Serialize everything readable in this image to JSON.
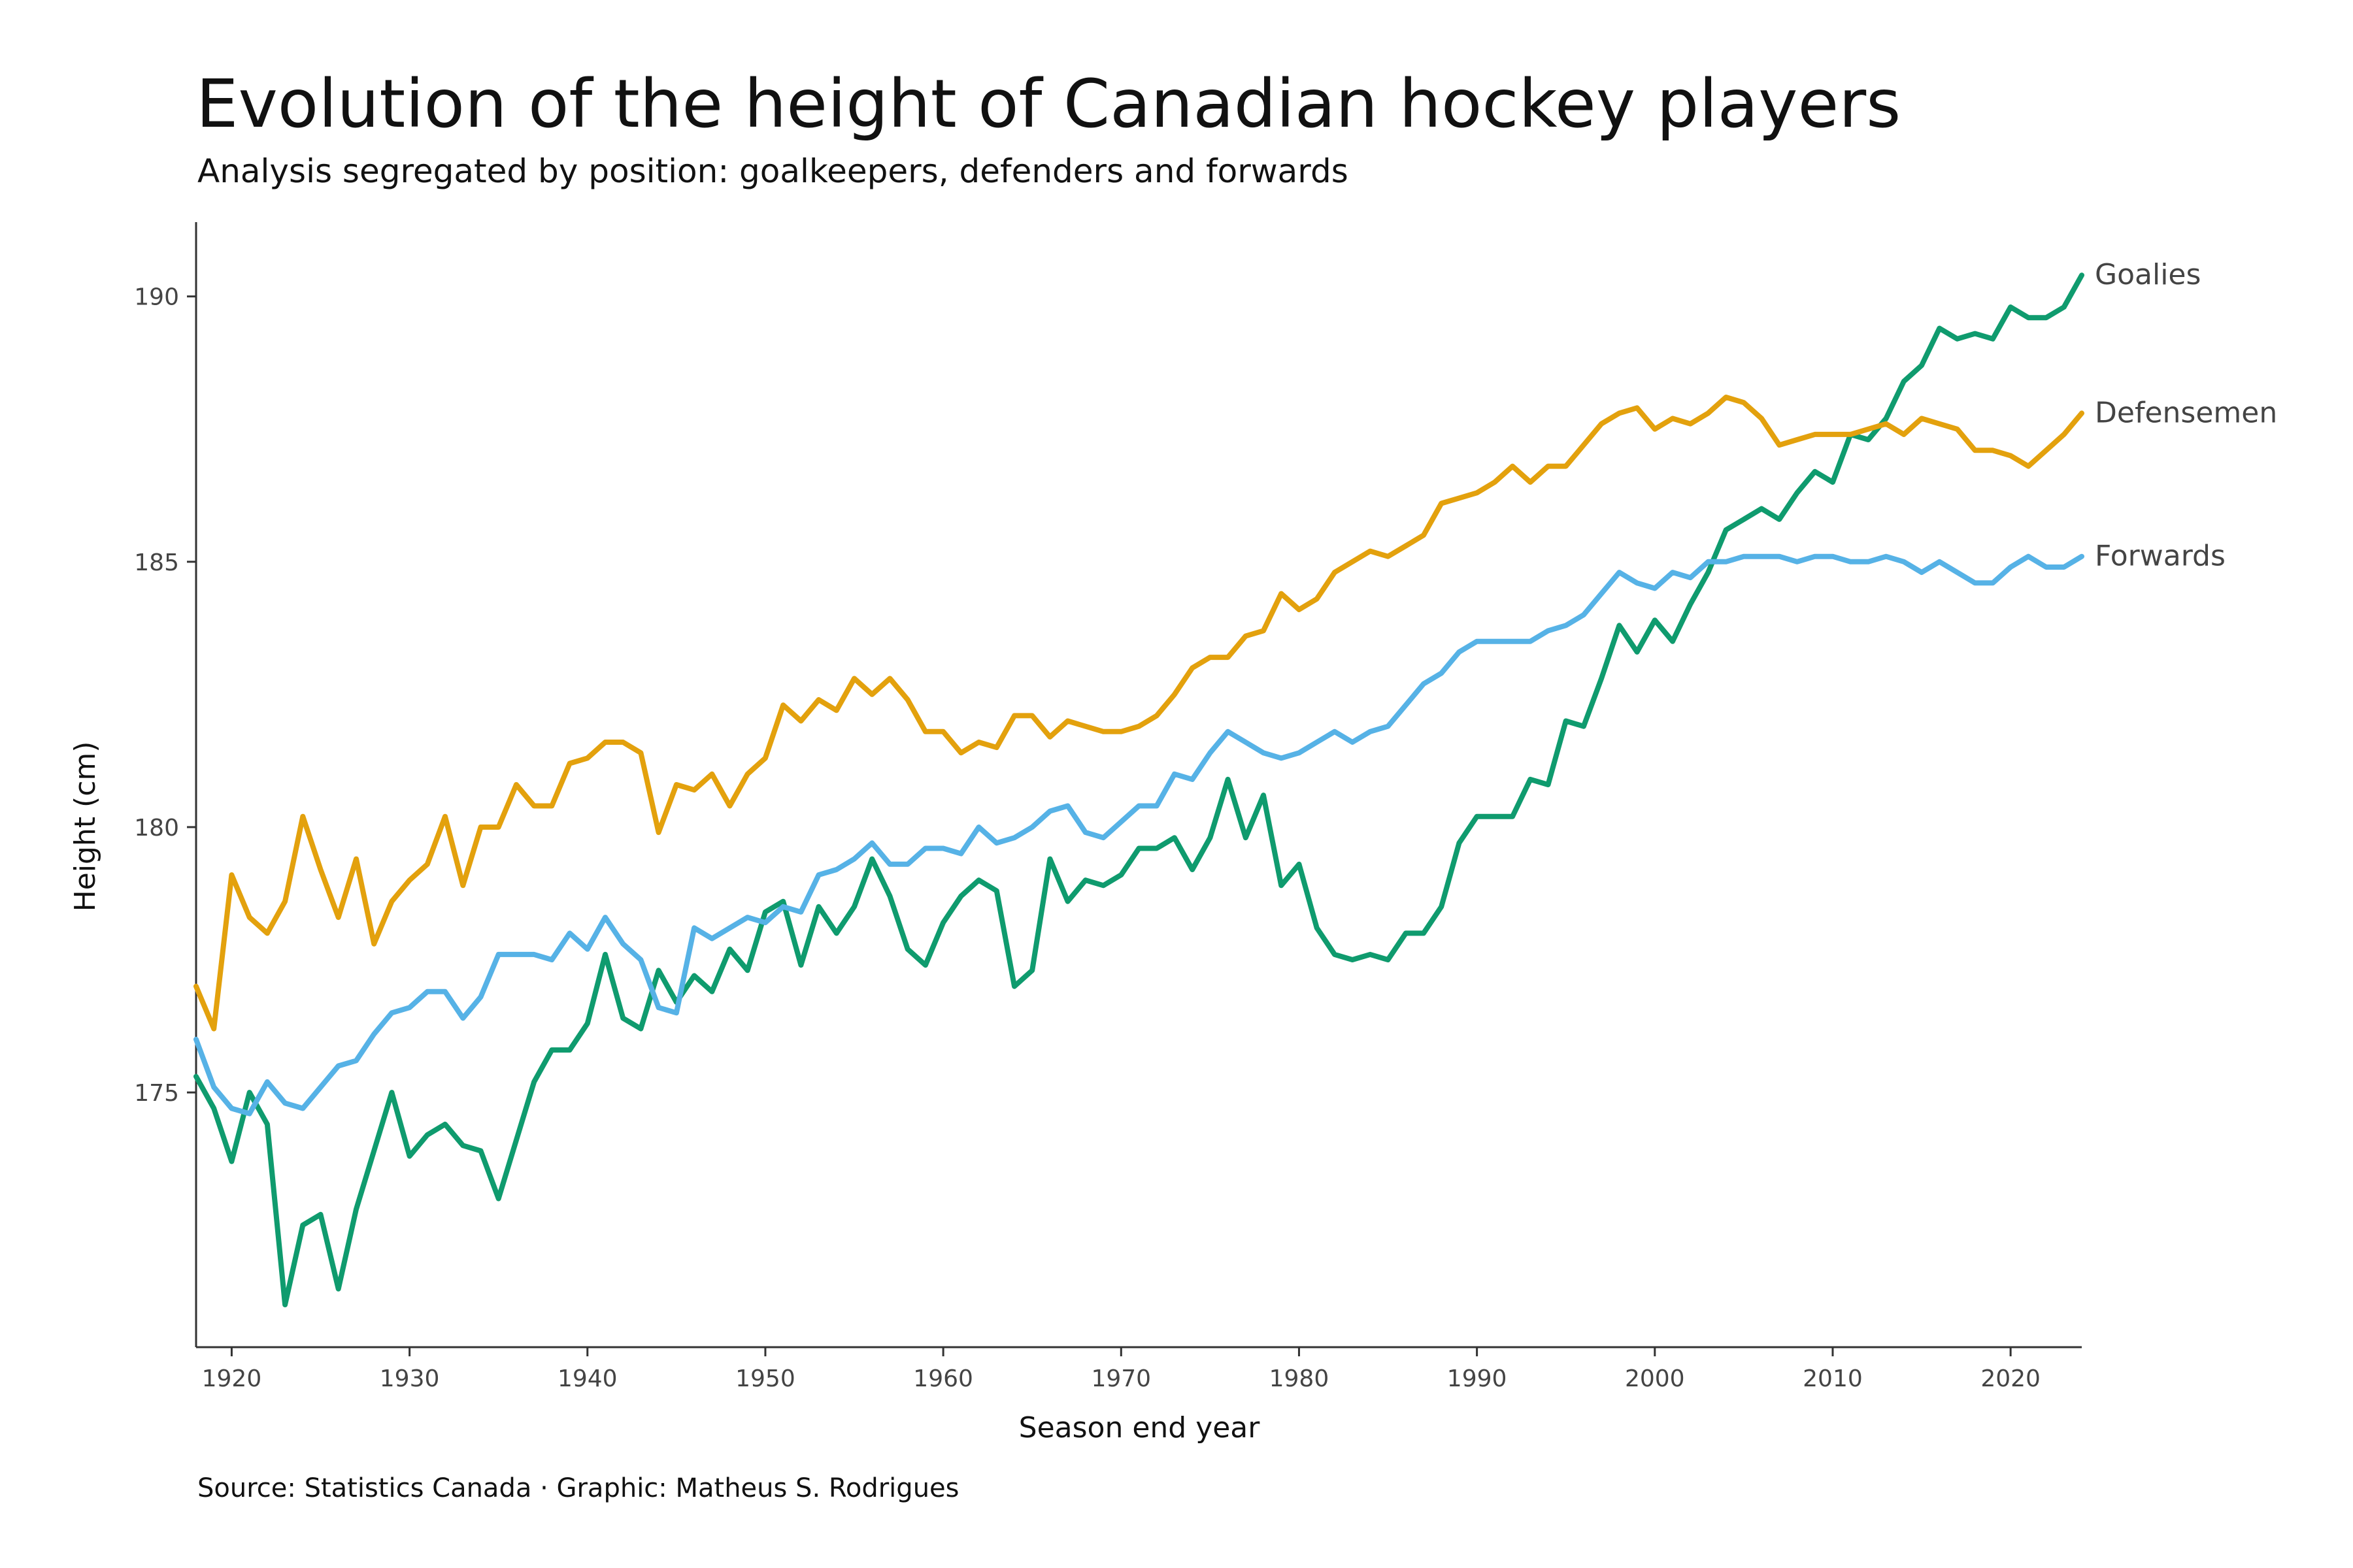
{
  "title": "Evolution of the height of Canadian hockey players",
  "subtitle": "Analysis segregated by position: goalkeepers, defenders and forwards",
  "caption": "Source: Statistics Canada · Graphic: Matheus S. Rodrigues",
  "colors": {
    "Goalies": "#0f9b6e",
    "Defensemen": "#e3a10d",
    "Forwards": "#56b2e6",
    "axis": "#333333",
    "text": "#111111"
  },
  "chart_data": {
    "type": "line",
    "xlabel": "Season end year",
    "ylabel": "Height (cm)",
    "xlim": [
      1918,
      2024
    ],
    "ylim": [
      170.2,
      191.4
    ],
    "grid": false,
    "x_ticks": [
      1920,
      1930,
      1940,
      1950,
      1960,
      1970,
      1980,
      1990,
      2000,
      2010,
      2020
    ],
    "x_tick_labels": [
      "1920",
      "1930",
      "1940",
      "1950",
      "1960",
      "1970",
      "1980",
      "1990",
      "2000",
      "2010",
      "2020"
    ],
    "y_ticks": [
      175,
      180,
      185,
      190
    ],
    "y_tick_labels": [
      "175",
      "180",
      "185",
      "190"
    ],
    "x": [
      1918,
      1919,
      1920,
      1921,
      1922,
      1923,
      1924,
      1925,
      1926,
      1927,
      1928,
      1929,
      1930,
      1931,
      1932,
      1933,
      1934,
      1935,
      1936,
      1937,
      1938,
      1939,
      1940,
      1941,
      1942,
      1943,
      1944,
      1945,
      1946,
      1947,
      1948,
      1949,
      1950,
      1951,
      1952,
      1953,
      1954,
      1955,
      1956,
      1957,
      1958,
      1959,
      1960,
      1961,
      1962,
      1963,
      1964,
      1965,
      1966,
      1967,
      1968,
      1969,
      1970,
      1971,
      1972,
      1973,
      1974,
      1975,
      1976,
      1977,
      1978,
      1979,
      1980,
      1981,
      1982,
      1983,
      1984,
      1985,
      1986,
      1987,
      1988,
      1989,
      1990,
      1991,
      1992,
      1993,
      1994,
      1995,
      1996,
      1997,
      1998,
      1999,
      2000,
      2001,
      2002,
      2003,
      2004,
      2005,
      2006,
      2007,
      2008,
      2009,
      2010,
      2011,
      2012,
      2013,
      2014,
      2015,
      2016,
      2017,
      2018,
      2019,
      2020,
      2021,
      2022,
      2023,
      2024
    ],
    "series": [
      {
        "name": "Goalies",
        "values": [
          175.3,
          174.7,
          173.7,
          175.0,
          174.4,
          171.0,
          172.5,
          172.7,
          171.3,
          172.8,
          173.9,
          175.0,
          173.8,
          174.2,
          174.4,
          174.0,
          173.9,
          173.0,
          174.1,
          175.2,
          175.8,
          175.8,
          176.3,
          177.6,
          176.4,
          176.2,
          177.3,
          176.7,
          177.2,
          176.9,
          177.7,
          177.3,
          178.4,
          178.6,
          177.4,
          178.5,
          178.0,
          178.5,
          179.4,
          178.7,
          177.7,
          177.4,
          178.2,
          178.7,
          179.0,
          178.8,
          177.0,
          177.3,
          179.4,
          178.6,
          179.0,
          178.9,
          179.1,
          179.6,
          179.6,
          179.8,
          179.2,
          179.8,
          180.9,
          179.8,
          180.6,
          178.9,
          179.3,
          178.1,
          177.6,
          177.5,
          177.6,
          177.5,
          178.0,
          178.0,
          178.5,
          179.7,
          180.2,
          180.2,
          180.2,
          180.9,
          180.8,
          182.0,
          181.9,
          182.8,
          183.8,
          183.3,
          183.9,
          183.5,
          184.2,
          184.8,
          185.6,
          185.8,
          186.0,
          185.8,
          186.3,
          186.7,
          186.5,
          187.4,
          187.3,
          187.7,
          188.4,
          188.7,
          189.4,
          189.2,
          189.3,
          189.2,
          189.8,
          189.6,
          189.6,
          189.8,
          190.4
        ]
      },
      {
        "name": "Defensemen",
        "values": [
          177.0,
          176.2,
          179.1,
          178.3,
          178.0,
          178.6,
          180.2,
          179.2,
          178.3,
          179.4,
          177.8,
          178.6,
          179.0,
          179.3,
          180.2,
          178.9,
          180.0,
          180.0,
          180.8,
          180.4,
          180.4,
          181.2,
          181.3,
          181.6,
          181.6,
          181.4,
          179.9,
          180.8,
          180.7,
          181.0,
          180.4,
          181.0,
          181.3,
          182.3,
          182.0,
          182.4,
          182.2,
          182.8,
          182.5,
          182.8,
          182.4,
          181.8,
          181.8,
          181.4,
          181.6,
          181.5,
          182.1,
          182.1,
          181.7,
          182.0,
          181.9,
          181.8,
          181.8,
          181.9,
          182.1,
          182.5,
          183.0,
          183.2,
          183.2,
          183.6,
          183.7,
          184.4,
          184.1,
          184.3,
          184.8,
          185.0,
          185.2,
          185.1,
          185.3,
          185.5,
          186.1,
          186.2,
          186.3,
          186.5,
          186.8,
          186.5,
          186.8,
          186.8,
          187.2,
          187.6,
          187.8,
          187.9,
          187.5,
          187.7,
          187.6,
          187.8,
          188.1,
          188.0,
          187.7,
          187.2,
          187.3,
          187.4,
          187.4,
          187.4,
          187.5,
          187.6,
          187.4,
          187.7,
          187.6,
          187.5,
          187.1,
          187.1,
          187.0,
          186.8,
          187.1,
          187.4,
          187.8
        ]
      },
      {
        "name": "Forwards",
        "values": [
          176.0,
          175.1,
          174.7,
          174.6,
          175.2,
          174.8,
          174.7,
          175.1,
          175.5,
          175.6,
          176.1,
          176.5,
          176.6,
          176.9,
          176.9,
          176.4,
          176.8,
          177.6,
          177.6,
          177.6,
          177.5,
          178.0,
          177.7,
          178.3,
          177.8,
          177.5,
          176.6,
          176.5,
          178.1,
          177.9,
          178.1,
          178.3,
          178.2,
          178.5,
          178.4,
          179.1,
          179.2,
          179.4,
          179.7,
          179.3,
          179.3,
          179.6,
          179.6,
          179.5,
          180.0,
          179.7,
          179.8,
          180.0,
          180.3,
          180.4,
          179.9,
          179.8,
          180.1,
          180.4,
          180.4,
          181.0,
          180.9,
          181.4,
          181.8,
          181.6,
          181.4,
          181.3,
          181.4,
          181.6,
          181.8,
          181.6,
          181.8,
          181.9,
          182.3,
          182.7,
          182.9,
          183.3,
          183.5,
          183.5,
          183.5,
          183.5,
          183.7,
          183.8,
          184.0,
          184.4,
          184.8,
          184.6,
          184.5,
          184.8,
          184.7,
          185.0,
          185.0,
          185.1,
          185.1,
          185.1,
          185.0,
          185.1,
          185.1,
          185.0,
          185.0,
          185.1,
          185.0,
          184.8,
          185.0,
          184.8,
          184.6,
          184.6,
          184.9,
          185.1,
          184.9,
          184.9,
          185.1
        ]
      }
    ]
  }
}
